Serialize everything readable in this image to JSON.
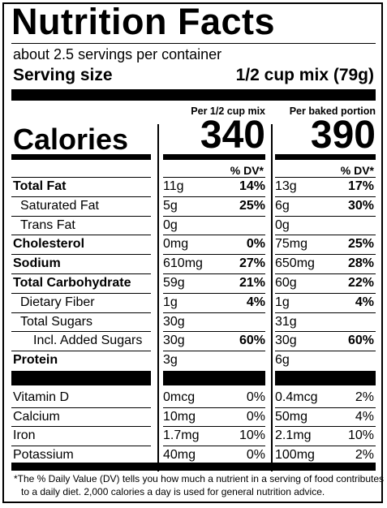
{
  "title": "Nutrition Facts",
  "servings_per_container": "about 2.5 servings per container",
  "serving_size_label": "Serving size",
  "serving_size_value": "1/2 cup mix (79g)",
  "columns": [
    {
      "header": "Per 1/2 cup mix",
      "calories": "340",
      "dv_header": "% DV*"
    },
    {
      "header": "Per baked portion",
      "calories": "390",
      "dv_header": "% DV*"
    }
  ],
  "calories_label": "Calories",
  "nutrients": [
    {
      "label": "Total Fat",
      "bold": true,
      "indent": 0,
      "c1_amount": "11g",
      "c1_dv": "14%",
      "c2_amount": "13g",
      "c2_dv": "17%"
    },
    {
      "label": "Saturated Fat",
      "bold": false,
      "indent": 1,
      "c1_amount": "5g",
      "c1_dv": "25%",
      "c2_amount": "6g",
      "c2_dv": "30%"
    },
    {
      "label": "Trans Fat",
      "bold": false,
      "indent": 1,
      "c1_amount": "0g",
      "c1_dv": "",
      "c2_amount": "0g",
      "c2_dv": ""
    },
    {
      "label": "Cholesterol",
      "bold": true,
      "indent": 0,
      "c1_amount": "0mg",
      "c1_dv": "0%",
      "c2_amount": "75mg",
      "c2_dv": "25%"
    },
    {
      "label": "Sodium",
      "bold": true,
      "indent": 0,
      "c1_amount": "610mg",
      "c1_dv": "27%",
      "c2_amount": "650mg",
      "c2_dv": "28%"
    },
    {
      "label": "Total Carbohydrate",
      "bold": true,
      "indent": 0,
      "c1_amount": "59g",
      "c1_dv": "21%",
      "c2_amount": "60g",
      "c2_dv": "22%"
    },
    {
      "label": "Dietary Fiber",
      "bold": false,
      "indent": 1,
      "c1_amount": "1g",
      "c1_dv": "4%",
      "c2_amount": "1g",
      "c2_dv": "4%"
    },
    {
      "label": "Total Sugars",
      "bold": false,
      "indent": 1,
      "c1_amount": "30g",
      "c1_dv": "",
      "c2_amount": "31g",
      "c2_dv": ""
    },
    {
      "label": "Incl. Added Sugars",
      "bold": false,
      "indent": 2,
      "c1_amount": "30g",
      "c1_dv": "60%",
      "c2_amount": "30g",
      "c2_dv": "60%"
    },
    {
      "label": "Protein",
      "bold": true,
      "indent": 0,
      "c1_amount": "3g",
      "c1_dv": "",
      "c2_amount": "6g",
      "c2_dv": ""
    }
  ],
  "vitamins": [
    {
      "label": "Vitamin D",
      "c1_amount": "0mcg",
      "c1_dv": "0%",
      "c2_amount": "0.4mcg",
      "c2_dv": "2%"
    },
    {
      "label": "Calcium",
      "c1_amount": "10mg",
      "c1_dv": "0%",
      "c2_amount": "50mg",
      "c2_dv": "4%"
    },
    {
      "label": "Iron",
      "c1_amount": "1.7mg",
      "c1_dv": "10%",
      "c2_amount": "2.1mg",
      "c2_dv": "10%"
    },
    {
      "label": "Potassium",
      "c1_amount": "40mg",
      "c1_dv": "0%",
      "c2_amount": "100mg",
      "c2_dv": "2%"
    }
  ],
  "footnote_line1": "*The % Daily Value (DV) tells you how much a nutrient in a serving of food contributes",
  "footnote_line2": "to a daily diet. 2,000 calories a day is used for general nutrition advice."
}
